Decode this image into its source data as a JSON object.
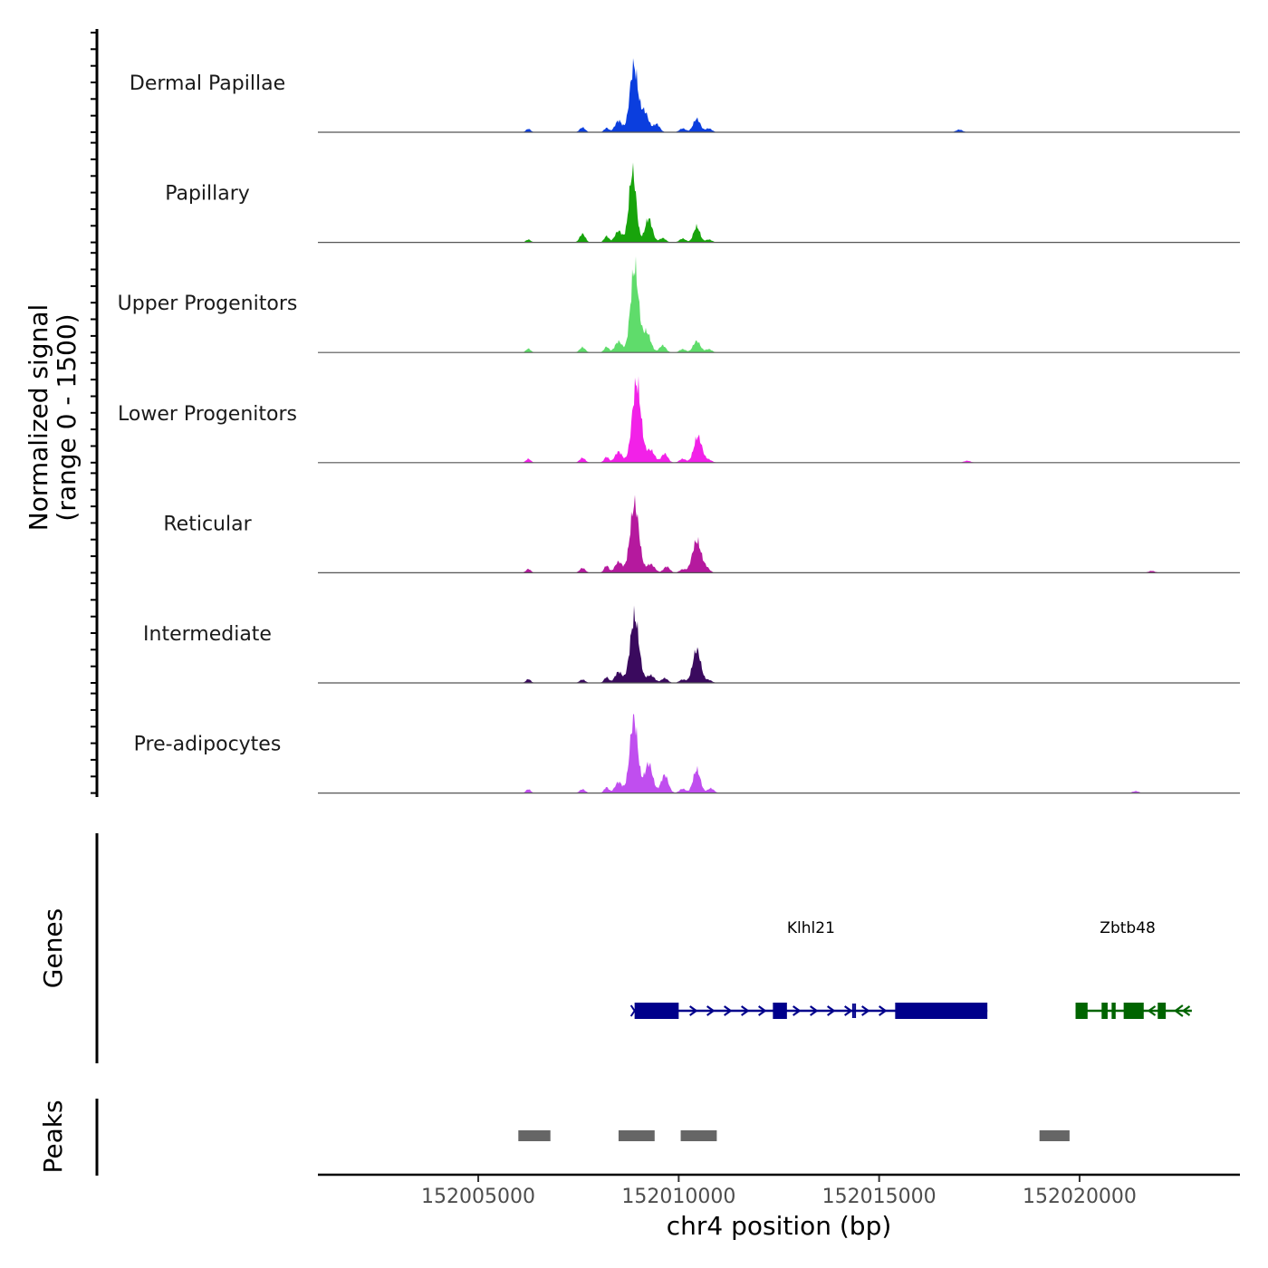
{
  "chart_data": {
    "type": "area",
    "chromosome": "chr4",
    "xlabel": "chr4 position (bp)",
    "ylabel_line1": "Normalized signal",
    "ylabel_line2": "(range 0 - 1500)",
    "xlim": [
      152001000,
      152024000
    ],
    "ylim": [
      0,
      1500
    ],
    "x_ticks": [
      152005000,
      152010000,
      152015000,
      152020000
    ],
    "x_tick_labels": [
      "152005000",
      "152010000",
      "152015000",
      "152020000"
    ],
    "tracks": [
      {
        "name": "Dermal Papillae",
        "color": "#0b3ede",
        "peaks": [
          {
            "pos": 152006250,
            "h": 70,
            "w": 60
          },
          {
            "pos": 152007600,
            "h": 100,
            "w": 70
          },
          {
            "pos": 152008200,
            "h": 90,
            "w": 60
          },
          {
            "pos": 152008500,
            "h": 240,
            "w": 90
          },
          {
            "pos": 152008880,
            "h": 1380,
            "w": 100
          },
          {
            "pos": 152009150,
            "h": 420,
            "w": 100
          },
          {
            "pos": 152009450,
            "h": 170,
            "w": 80
          },
          {
            "pos": 152010100,
            "h": 80,
            "w": 80
          },
          {
            "pos": 152010450,
            "h": 280,
            "w": 90
          },
          {
            "pos": 152010750,
            "h": 80,
            "w": 80
          },
          {
            "pos": 152017000,
            "h": 55,
            "w": 80
          }
        ]
      },
      {
        "name": "Papillary",
        "color": "#18a40c",
        "peaks": [
          {
            "pos": 152006250,
            "h": 60,
            "w": 60
          },
          {
            "pos": 152007600,
            "h": 180,
            "w": 70
          },
          {
            "pos": 152008200,
            "h": 130,
            "w": 60
          },
          {
            "pos": 152008500,
            "h": 240,
            "w": 90
          },
          {
            "pos": 152008850,
            "h": 1480,
            "w": 90
          },
          {
            "pos": 152009250,
            "h": 500,
            "w": 90
          },
          {
            "pos": 152009600,
            "h": 90,
            "w": 80
          },
          {
            "pos": 152010100,
            "h": 80,
            "w": 80
          },
          {
            "pos": 152010450,
            "h": 330,
            "w": 80
          },
          {
            "pos": 152010750,
            "h": 60,
            "w": 80
          }
        ]
      },
      {
        "name": "Upper Progenitors",
        "color": "#5fdc6b",
        "peaks": [
          {
            "pos": 152006250,
            "h": 80,
            "w": 60
          },
          {
            "pos": 152007600,
            "h": 110,
            "w": 70
          },
          {
            "pos": 152008200,
            "h": 120,
            "w": 60
          },
          {
            "pos": 152008500,
            "h": 230,
            "w": 90
          },
          {
            "pos": 152008900,
            "h": 1770,
            "w": 100
          },
          {
            "pos": 152009200,
            "h": 420,
            "w": 100
          },
          {
            "pos": 152009600,
            "h": 150,
            "w": 80
          },
          {
            "pos": 152010100,
            "h": 70,
            "w": 80
          },
          {
            "pos": 152010450,
            "h": 240,
            "w": 90
          },
          {
            "pos": 152010750,
            "h": 70,
            "w": 80
          }
        ]
      },
      {
        "name": "Lower Progenitors",
        "color": "#f221e8",
        "peaks": [
          {
            "pos": 152006250,
            "h": 80,
            "w": 60
          },
          {
            "pos": 152007600,
            "h": 100,
            "w": 70
          },
          {
            "pos": 152008200,
            "h": 120,
            "w": 60
          },
          {
            "pos": 152008500,
            "h": 230,
            "w": 90
          },
          {
            "pos": 152008950,
            "h": 1670,
            "w": 110
          },
          {
            "pos": 152009300,
            "h": 260,
            "w": 100
          },
          {
            "pos": 152009650,
            "h": 190,
            "w": 80
          },
          {
            "pos": 152010100,
            "h": 80,
            "w": 80
          },
          {
            "pos": 152010480,
            "h": 550,
            "w": 100
          },
          {
            "pos": 152010750,
            "h": 60,
            "w": 80
          },
          {
            "pos": 152017200,
            "h": 40,
            "w": 80
          }
        ]
      },
      {
        "name": "Reticular",
        "color": "#b5199e",
        "peaks": [
          {
            "pos": 152006250,
            "h": 80,
            "w": 60
          },
          {
            "pos": 152007600,
            "h": 100,
            "w": 70
          },
          {
            "pos": 152008200,
            "h": 150,
            "w": 60
          },
          {
            "pos": 152008500,
            "h": 230,
            "w": 90
          },
          {
            "pos": 152008900,
            "h": 1440,
            "w": 110
          },
          {
            "pos": 152009300,
            "h": 180,
            "w": 100
          },
          {
            "pos": 152009700,
            "h": 130,
            "w": 80
          },
          {
            "pos": 152010100,
            "h": 70,
            "w": 80
          },
          {
            "pos": 152010450,
            "h": 670,
            "w": 110
          },
          {
            "pos": 152010700,
            "h": 90,
            "w": 80
          },
          {
            "pos": 152021800,
            "h": 40,
            "w": 80
          }
        ]
      },
      {
        "name": "Intermediate",
        "color": "#3a0a5e",
        "peaks": [
          {
            "pos": 152006250,
            "h": 80,
            "w": 60
          },
          {
            "pos": 152007600,
            "h": 70,
            "w": 70
          },
          {
            "pos": 152008200,
            "h": 120,
            "w": 60
          },
          {
            "pos": 152008500,
            "h": 230,
            "w": 90
          },
          {
            "pos": 152008900,
            "h": 1380,
            "w": 110
          },
          {
            "pos": 152009300,
            "h": 160,
            "w": 100
          },
          {
            "pos": 152009650,
            "h": 100,
            "w": 80
          },
          {
            "pos": 152010100,
            "h": 70,
            "w": 80
          },
          {
            "pos": 152010450,
            "h": 700,
            "w": 100
          },
          {
            "pos": 152010750,
            "h": 60,
            "w": 80
          }
        ]
      },
      {
        "name": "Pre-adipocytes",
        "color": "#c04eef",
        "peaks": [
          {
            "pos": 152006250,
            "h": 80,
            "w": 60
          },
          {
            "pos": 152007600,
            "h": 80,
            "w": 70
          },
          {
            "pos": 152008200,
            "h": 120,
            "w": 60
          },
          {
            "pos": 152008500,
            "h": 230,
            "w": 90
          },
          {
            "pos": 152008880,
            "h": 1560,
            "w": 100
          },
          {
            "pos": 152009250,
            "h": 620,
            "w": 100
          },
          {
            "pos": 152009650,
            "h": 380,
            "w": 90
          },
          {
            "pos": 152010100,
            "h": 90,
            "w": 80
          },
          {
            "pos": 152010450,
            "h": 490,
            "w": 90
          },
          {
            "pos": 152010800,
            "h": 100,
            "w": 80
          },
          {
            "pos": 152021400,
            "h": 40,
            "w": 80
          }
        ]
      }
    ],
    "genes_track_label": "Genes",
    "genes": [
      {
        "name": "Klhl21",
        "strand": "+",
        "start": 152008900,
        "end": 152017700,
        "label_pos": 152013300,
        "color": "#00008b",
        "exons": [
          [
            152008900,
            152010000
          ],
          [
            152012350,
            152012700
          ],
          [
            152015400,
            152017700
          ]
        ],
        "marks": [
          152014350,
          152014400
        ]
      },
      {
        "name": "Zbtb48",
        "strand": "-",
        "start": 152019900,
        "end": 152022800,
        "label_pos": 152021200,
        "color": "#006400",
        "exons": [
          [
            152019900,
            152020200
          ],
          [
            152020550,
            152020700
          ],
          [
            152020800,
            152020900
          ],
          [
            152021100,
            152021600
          ],
          [
            152021950,
            152022150
          ]
        ],
        "marks": []
      }
    ],
    "peaks_track_label": "Peaks",
    "peak_regions": [
      [
        152006000,
        152006800
      ],
      [
        152008500,
        152009400
      ],
      [
        152010050,
        152010950
      ],
      [
        152019000,
        152019750
      ]
    ],
    "peak_region_color": "#666666"
  }
}
